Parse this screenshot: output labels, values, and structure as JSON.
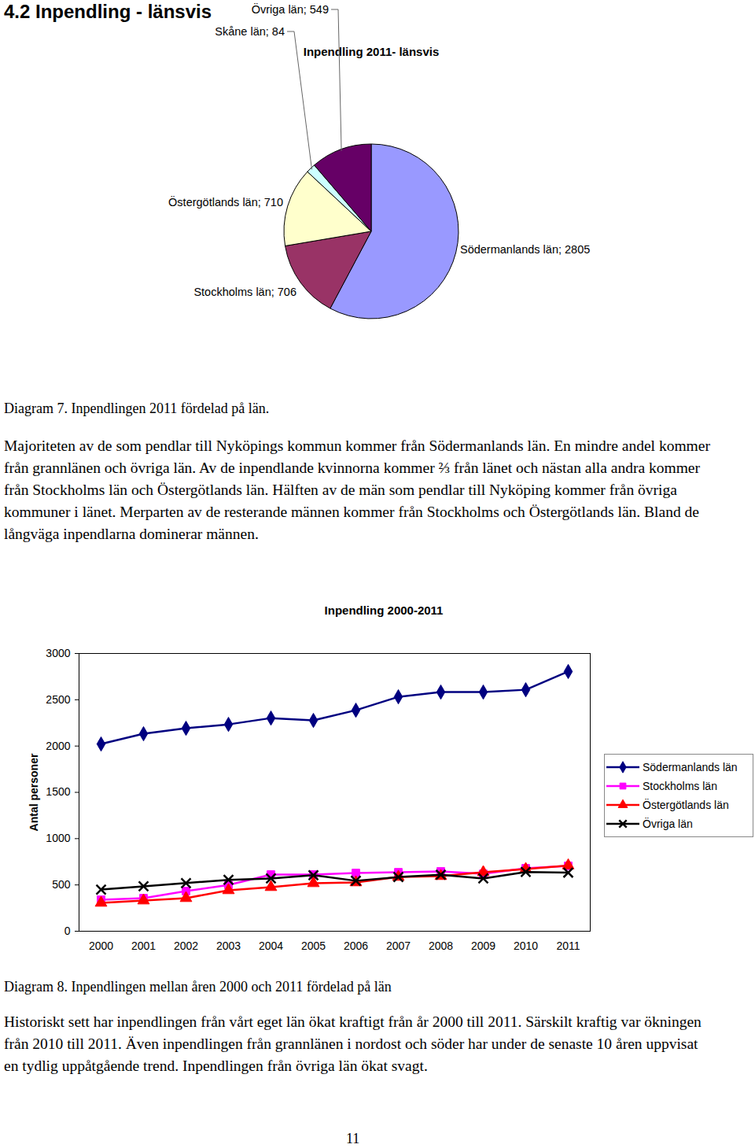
{
  "heading": "4.2 Inpendling - länsvis",
  "chart_data": [
    {
      "type": "pie",
      "title": "Inpendling 2011- länsvis",
      "categories": [
        "Södermanlands län",
        "Stockholms län",
        "Östergötlands län",
        "Skåne län",
        "Övriga län"
      ],
      "values": [
        2805,
        706,
        710,
        84,
        549
      ],
      "value_labels": [
        "Södermanlands län; 2805",
        "Stockholms län; 706",
        "Östergötlands län; 710",
        "Skåne län; 84",
        "Övriga län; 549"
      ],
      "colors": [
        "#9999ff",
        "#993366",
        "#ffffcc",
        "#ccffff",
        "#660066"
      ],
      "data_labels": true
    },
    {
      "type": "line",
      "title": "Inpendling 2000-2011",
      "y_label": "Antal personer",
      "categories": [
        "2000",
        "2001",
        "2002",
        "2003",
        "2004",
        "2005",
        "2006",
        "2007",
        "2008",
        "2009",
        "2010",
        "2011"
      ],
      "series": [
        {
          "name": "Södermanlands län",
          "color": "#000080",
          "marker": "diamond",
          "values": [
            2022,
            2133,
            2192,
            2234,
            2302,
            2277,
            2387,
            2532,
            2583,
            2583,
            2608,
            2805
          ]
        },
        {
          "name": "Stockholms län",
          "color": "#ff00ff",
          "marker": "square",
          "values": [
            340,
            357,
            433,
            500,
            612,
            612,
            629,
            637,
            646,
            620,
            680,
            706
          ]
        },
        {
          "name": "Östergötlands län",
          "color": "#ff0000",
          "marker": "triangle",
          "values": [
            306,
            331,
            357,
            442,
            476,
            518,
            527,
            586,
            595,
            637,
            671,
            710
          ]
        },
        {
          "name": "Övriga län",
          "color": "#000000",
          "marker": "x",
          "values": [
            450,
            485,
            520,
            555,
            570,
            605,
            545,
            585,
            610,
            570,
            640,
            633
          ]
        }
      ],
      "ylim": [
        0,
        3000
      ],
      "yticks": [
        0,
        500,
        1000,
        1500,
        2000,
        2500,
        3000
      ],
      "grid": false,
      "legend": "right"
    }
  ],
  "captions": [
    "Diagram 7. Inpendlingen 2011 fördelad på län.",
    "Diagram 8. Inpendlingen mellan åren 2000 och 2011 fördelad på län"
  ],
  "paragraphs": [
    "Majoriteten av de som pendlar till Nyköpings kommun kommer från Södermanlands län. En mindre andel kommer från grannlänen och övriga län. Av de inpendlande kvinnorna kommer ⅔ från länet och nästan alla andra kommer från Stockholms län och Östergötlands län. Hälften av de män som pendlar till Nyköping kommer från övriga kommuner i länet. Merparten av de resterande männen kommer från Stockholms och Östergötlands län. Bland de långväga inpendlarna dominerar männen.",
    "Historiskt sett har inpendlingen från vårt eget län ökat kraftigt från år 2000 till 2011. Särskilt kraftig var ökningen från 2010 till 2011. Även inpendlingen från grannlänen i nordost och söder har under de senaste 10 åren uppvisat en tydlig uppåtgående trend. Inpendlingen från övriga län ökat svagt."
  ],
  "page_number": "11"
}
